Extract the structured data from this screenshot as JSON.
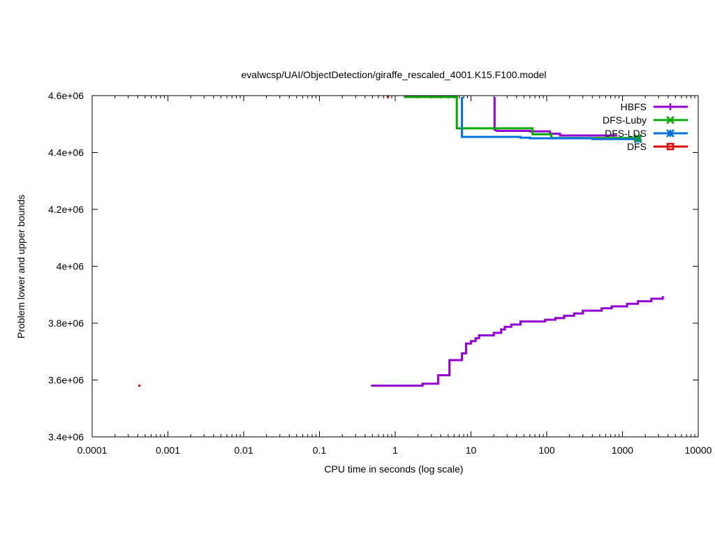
{
  "chart_data": {
    "type": "line",
    "title": "evalwcsp/UAI/ObjectDetection/giraffe_rescaled_4001.K15.F100.model",
    "xlabel": "CPU time in seconds (log scale)",
    "ylabel": "Problem lower and upper bounds",
    "x_scale": "log",
    "xlim": [
      0.0001,
      10000
    ],
    "ylim": [
      3400000,
      4600000
    ],
    "x_ticks": [
      {
        "value": 0.0001,
        "label": "0.0001"
      },
      {
        "value": 0.001,
        "label": "0.001"
      },
      {
        "value": 0.01,
        "label": "0.01"
      },
      {
        "value": 0.1,
        "label": "0.1"
      },
      {
        "value": 1,
        "label": "1"
      },
      {
        "value": 10,
        "label": "10"
      },
      {
        "value": 100,
        "label": "100"
      },
      {
        "value": 1000,
        "label": "1000"
      },
      {
        "value": 10000,
        "label": "10000"
      }
    ],
    "y_ticks": [
      {
        "value": 3400000,
        "label": "3.4e+06"
      },
      {
        "value": 3600000,
        "label": "3.6e+06"
      },
      {
        "value": 3800000,
        "label": "3.8e+06"
      },
      {
        "value": 4000000,
        "label": "4e+06"
      },
      {
        "value": 4200000,
        "label": "4.2e+06"
      },
      {
        "value": 4400000,
        "label": "4.4e+06"
      },
      {
        "value": 4600000,
        "label": "4.6e+06"
      }
    ],
    "grid": false,
    "legend_position": "top-right",
    "series": [
      {
        "name": "HBFS",
        "color": "#9400d3",
        "marker": "plus",
        "lines": [
          {
            "kind": "upper",
            "points": [
              [
                20.5,
                4595000
              ],
              [
                20.5,
                4480000
              ],
              [
                22,
                4476000
              ],
              [
                60,
                4476000
              ],
              [
                60,
                4474000
              ],
              [
                110,
                4474000
              ],
              [
                110,
                4466000
              ],
              [
                150,
                4466000
              ],
              [
                150,
                4460000
              ],
              [
                850,
                4460000
              ]
            ]
          },
          {
            "kind": "lower",
            "points": [
              [
                0.48,
                3580000
              ],
              [
                2.3,
                3580000
              ],
              [
                2.3,
                3587000
              ],
              [
                3.7,
                3587000
              ],
              [
                3.7,
                3617000
              ],
              [
                5.2,
                3617000
              ],
              [
                5.2,
                3670000
              ],
              [
                7.6,
                3670000
              ],
              [
                7.6,
                3694000
              ],
              [
                8.6,
                3694000
              ],
              [
                8.6,
                3728000
              ],
              [
                10,
                3728000
              ],
              [
                10,
                3737000
              ],
              [
                11.5,
                3737000
              ],
              [
                11.5,
                3747000
              ],
              [
                12.8,
                3747000
              ],
              [
                12.8,
                3757000
              ],
              [
                20,
                3757000
              ],
              [
                20,
                3766000
              ],
              [
                25,
                3766000
              ],
              [
                25,
                3778000
              ],
              [
                28,
                3778000
              ],
              [
                28,
                3787000
              ],
              [
                34,
                3787000
              ],
              [
                34,
                3795000
              ],
              [
                45,
                3795000
              ],
              [
                45,
                3806000
              ],
              [
                95,
                3806000
              ],
              [
                95,
                3812000
              ],
              [
                130,
                3812000
              ],
              [
                130,
                3818000
              ],
              [
                170,
                3818000
              ],
              [
                170,
                3826000
              ],
              [
                230,
                3826000
              ],
              [
                230,
                3834000
              ],
              [
                300,
                3834000
              ],
              [
                300,
                3844000
              ],
              [
                530,
                3844000
              ],
              [
                530,
                3852000
              ],
              [
                720,
                3852000
              ],
              [
                720,
                3859000
              ],
              [
                1150,
                3859000
              ],
              [
                1150,
                3868000
              ],
              [
                1600,
                3868000
              ],
              [
                1600,
                3877000
              ],
              [
                2400,
                3877000
              ],
              [
                2400,
                3886000
              ],
              [
                3400,
                3886000
              ],
              [
                3400,
                3895000
              ]
            ]
          }
        ]
      },
      {
        "name": "DFS-Luby",
        "color": "#00aa00",
        "marker": "x",
        "lines": [
          {
            "kind": "upper",
            "points": [
              [
                1.3,
                4595000
              ],
              [
                6.5,
                4595000
              ],
              [
                6.5,
                4485000
              ],
              [
                65,
                4485000
              ],
              [
                65,
                4464000
              ],
              [
                115,
                4464000
              ],
              [
                115,
                4451000
              ],
              [
                1600,
                4451000
              ]
            ]
          }
        ]
      },
      {
        "name": "DFS-LDS",
        "color": "#0070e0",
        "marker": "star",
        "lines": [
          {
            "kind": "upper",
            "points": [
              [
                7.6,
                4595000
              ],
              [
                7.6,
                4455000
              ],
              [
                45,
                4455000
              ],
              [
                45,
                4452000
              ],
              [
                60,
                4452000
              ],
              [
                60,
                4450000
              ],
              [
                400,
                4450000
              ],
              [
                400,
                4447000
              ],
              [
                1600,
                4447000
              ]
            ]
          }
        ]
      },
      {
        "name": "DFS",
        "color": "#dd0000",
        "marker": "square",
        "lines": [
          {
            "kind": "point",
            "points": [
              [
                0.00042,
                3580000
              ]
            ]
          },
          {
            "kind": "point",
            "points": [
              [
                0.8,
                4595000
              ]
            ]
          }
        ]
      }
    ],
    "endpoint_markers": [
      {
        "series": "DFS-LDS",
        "x": 1600,
        "y": 4447000
      },
      {
        "series": "DFS-Luby",
        "x": 1600,
        "y": 4451000
      }
    ]
  }
}
